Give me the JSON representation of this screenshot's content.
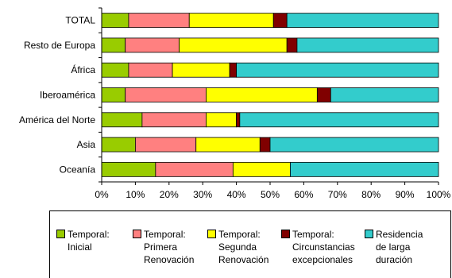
{
  "chart_data": {
    "type": "bar",
    "orientation": "horizontal",
    "stacked": "percent",
    "categories": [
      "TOTAL",
      "Resto de Europa",
      "África",
      "Iberoamérica",
      "América del Norte",
      "Asia",
      "Oceanía"
    ],
    "series": [
      {
        "name": "Temporal:\nInicial",
        "color": "#99cc00",
        "values": [
          8,
          7,
          8,
          7,
          12,
          10,
          16
        ]
      },
      {
        "name": "Temporal:\nPrimera\nRenovación",
        "color": "#ff8080",
        "values": [
          18,
          16,
          13,
          24,
          19,
          18,
          23
        ]
      },
      {
        "name": "Temporal:\nSegunda\nRenovación",
        "color": "#ffff00",
        "values": [
          25,
          32,
          17,
          33,
          9,
          19,
          17
        ]
      },
      {
        "name": "Temporal:\nCircunstancias\nexcepcionales",
        "color": "#800000",
        "values": [
          4,
          3,
          2,
          4,
          1,
          3,
          0
        ]
      },
      {
        "name": "Residencia\nde larga\nduración",
        "color": "#33cccc",
        "values": [
          45,
          42,
          60,
          32,
          59,
          50,
          44
        ]
      }
    ],
    "xlim": [
      0,
      100
    ],
    "x_ticks": [
      "0%",
      "10%",
      "20%",
      "30%",
      "40%",
      "50%",
      "60%",
      "70%",
      "80%",
      "90%",
      "100%"
    ],
    "grid": false,
    "legend_position": "bottom"
  }
}
